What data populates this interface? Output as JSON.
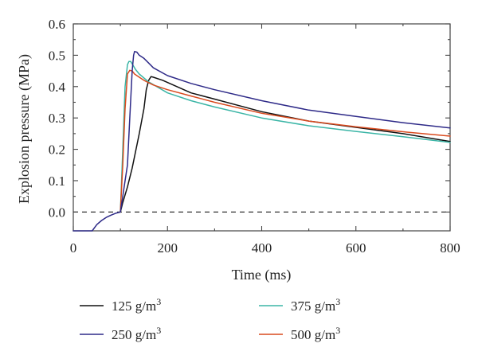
{
  "chart_data": {
    "type": "line",
    "xlabel": "Time (ms)",
    "ylabel": "Explosion pressure (MPa)",
    "xlim": [
      0,
      800
    ],
    "ylim": [
      -0.06,
      0.6
    ],
    "x_ticks": [
      0,
      200,
      400,
      600,
      800
    ],
    "y_ticks": [
      0.0,
      0.1,
      0.2,
      0.3,
      0.4,
      0.5,
      0.6
    ],
    "x_tick_labels": [
      "0",
      "200",
      "400",
      "600",
      "800"
    ],
    "y_tick_labels": [
      "0.0",
      "0.1",
      "0.2",
      "0.3",
      "0.4",
      "0.5",
      "0.6"
    ],
    "reference_line": {
      "y": 0.0,
      "style": "dashed"
    },
    "grid": false,
    "legend_position": "bottom",
    "baseline": {
      "x": [
        0,
        40,
        50,
        60,
        70,
        80,
        90,
        100
      ],
      "y": [
        -0.06,
        -0.06,
        -0.04,
        -0.027,
        -0.017,
        -0.01,
        -0.004,
        0.0
      ]
    },
    "series": [
      {
        "name": "125 g/m",
        "unit_exponent": "3",
        "color": "#111111",
        "x": [
          100,
          105,
          115,
          125,
          140,
          150,
          155,
          160,
          165,
          170,
          190,
          250,
          300,
          400,
          500,
          600,
          700,
          800
        ],
        "y": [
          0.0,
          0.03,
          0.08,
          0.14,
          0.25,
          0.33,
          0.39,
          0.42,
          0.432,
          0.43,
          0.42,
          0.38,
          0.36,
          0.32,
          0.29,
          0.27,
          0.25,
          0.225
        ]
      },
      {
        "name": "250 g/m",
        "unit_exponent": "3",
        "color": "#2e2a88",
        "x": [
          100,
          105,
          110,
          115,
          120,
          125,
          128,
          130,
          135,
          140,
          150,
          160,
          170,
          200,
          250,
          300,
          400,
          500,
          600,
          700,
          800
        ],
        "y": [
          0.0,
          0.05,
          0.1,
          0.15,
          0.3,
          0.45,
          0.5,
          0.512,
          0.51,
          0.5,
          0.49,
          0.475,
          0.46,
          0.435,
          0.41,
          0.39,
          0.355,
          0.325,
          0.305,
          0.285,
          0.268
        ]
      },
      {
        "name": "375 g/m",
        "unit_exponent": "3",
        "color": "#3bb5a6",
        "x": [
          100,
          105,
          110,
          115,
          118,
          122,
          126,
          132,
          140,
          160,
          200,
          250,
          300,
          400,
          500,
          600,
          700,
          800
        ],
        "y": [
          0.0,
          0.2,
          0.4,
          0.47,
          0.48,
          0.48,
          0.47,
          0.455,
          0.44,
          0.415,
          0.38,
          0.355,
          0.335,
          0.3,
          0.275,
          0.257,
          0.24,
          0.222
        ]
      },
      {
        "name": "500 g/m",
        "unit_exponent": "3",
        "color": "#d94a1e",
        "x": [
          100,
          105,
          110,
          115,
          120,
          125,
          130,
          140,
          150,
          170,
          200,
          250,
          300,
          400,
          500,
          600,
          700,
          800
        ],
        "y": [
          0.0,
          0.15,
          0.33,
          0.44,
          0.452,
          0.45,
          0.44,
          0.43,
          0.42,
          0.405,
          0.39,
          0.37,
          0.35,
          0.315,
          0.29,
          0.272,
          0.256,
          0.242
        ]
      }
    ]
  }
}
